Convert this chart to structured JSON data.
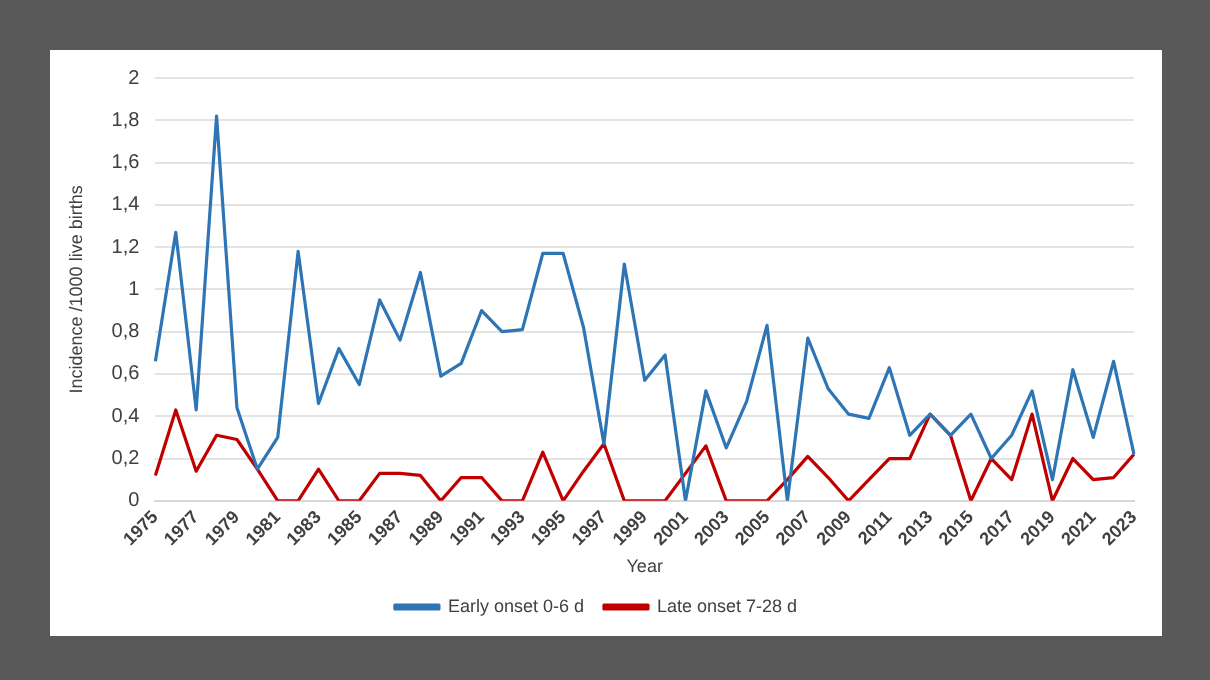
{
  "chart_data": {
    "type": "line",
    "xlabel": "Year",
    "ylabel": "Incidence /1000 live births",
    "categories": [
      "1975",
      null,
      "1977",
      null,
      "1979",
      null,
      "1981",
      null,
      "1983",
      null,
      "1985",
      null,
      "1987",
      null,
      "1989",
      null,
      "1991",
      null,
      "1993",
      null,
      "1995",
      null,
      "1997",
      null,
      "1999",
      null,
      "2001",
      null,
      "2003",
      null,
      "2005",
      null,
      "2007",
      null,
      "2009",
      null,
      "2011",
      null,
      "2013",
      null,
      "2015",
      null,
      "2017",
      null,
      "2019",
      null,
      "2021",
      null,
      "2023"
    ],
    "series": [
      {
        "name": "Early onset 0-6 d",
        "color": "#2e75b6",
        "values": [
          0.66,
          1.27,
          0.43,
          1.82,
          0.44,
          0.15,
          0.3,
          1.18,
          0.46,
          0.72,
          0.55,
          0.95,
          0.76,
          1.08,
          0.59,
          0.65,
          0.9,
          0.8,
          0.81,
          1.17,
          1.17,
          0.82,
          0.27,
          1.12,
          0.57,
          0.69,
          0,
          0.52,
          0.25,
          0.47,
          0.83,
          0,
          0.77,
          0.53,
          0.41,
          0.39,
          0.63,
          0.31,
          0.41,
          0.31,
          0.41,
          0.2,
          0.31,
          0.52,
          0.1,
          0.62,
          0.3,
          0.66,
          0.22
        ]
      },
      {
        "name": "Late onset 7-28 d",
        "color": "#c00000",
        "values": [
          0.12,
          0.43,
          0.14,
          0.31,
          0.29,
          0.15,
          0,
          0,
          0.15,
          0,
          0,
          0.13,
          0.13,
          0.12,
          0,
          0.11,
          0.11,
          0,
          0,
          0.23,
          0,
          0.14,
          0.27,
          0,
          0,
          0,
          0.13,
          0.26,
          0,
          0,
          0,
          0.1,
          0.21,
          0.11,
          0,
          0.1,
          0.2,
          0.2,
          0.41,
          0.31,
          0,
          0.2,
          0.1,
          0.41,
          0,
          0.2,
          0.1,
          0.11,
          0.22
        ]
      }
    ],
    "ylim": [
      0,
      2
    ],
    "yticks": [
      0,
      {
        "value": 0.2,
        "label": "0,2"
      },
      {
        "value": 0.4,
        "label": "0,4"
      },
      {
        "value": 0.6,
        "label": "0,6"
      },
      {
        "value": 0.8,
        "label": "0,8"
      },
      1,
      {
        "value": 1.2,
        "label": "1,2"
      },
      {
        "value": 1.4,
        "label": "1,4"
      },
      {
        "value": 1.6,
        "label": "1,6"
      },
      {
        "value": 1.8,
        "label": "1,8"
      },
      2
    ],
    "grid": "y",
    "legend": "bottom",
    "marker": "none",
    "line_style": "solid"
  }
}
